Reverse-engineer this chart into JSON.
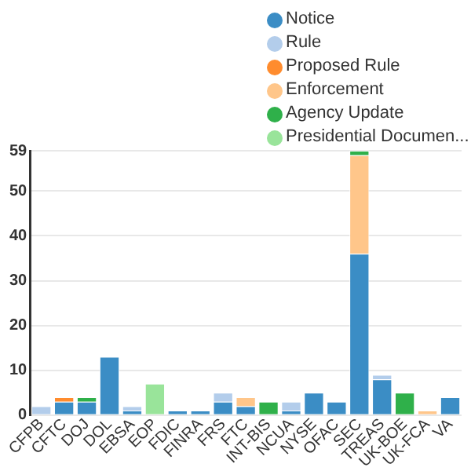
{
  "chart_data": {
    "type": "bar",
    "stacked": true,
    "legend": "top right",
    "grid": "y",
    "categories": [
      "CFPB",
      "CFTC",
      "DOJ",
      "DOL",
      "EBSA",
      "EOP",
      "FDIC",
      "FINRA",
      "FRS",
      "FTC",
      "INT-BIS",
      "NCUA",
      "NYSE",
      "OFAC",
      "SEC",
      "TREAS",
      "UK-BOE",
      "UK-FCA",
      "VA"
    ],
    "series": [
      {
        "name": "Notice",
        "color": "#3b8dc5",
        "values": [
          0,
          3,
          3,
          13,
          1,
          0,
          1,
          1,
          3,
          2,
          0,
          1,
          5,
          3,
          36,
          8,
          0,
          0,
          4
        ]
      },
      {
        "name": "Rule",
        "color": "#b3cdeb",
        "values": [
          2,
          0,
          0,
          0,
          1,
          0,
          0,
          0,
          2,
          0,
          0,
          2,
          0,
          0,
          0,
          1,
          0,
          0,
          0
        ]
      },
      {
        "name": "Proposed Rule",
        "color": "#ff8c2e",
        "values": [
          0,
          1,
          0,
          0,
          0,
          0,
          0,
          0,
          0,
          0,
          0,
          0,
          0,
          0,
          0,
          0,
          0,
          0,
          0
        ]
      },
      {
        "name": "Enforcement",
        "color": "#ffc68a",
        "values": [
          0,
          0,
          0,
          0,
          0,
          0,
          0,
          0,
          0,
          2,
          0,
          0,
          0,
          0,
          22,
          0,
          0,
          1,
          0
        ]
      },
      {
        "name": "Agency Update",
        "color": "#2fb04a",
        "values": [
          0,
          0,
          1,
          0,
          0,
          0,
          0,
          0,
          0,
          0,
          3,
          0,
          0,
          0,
          1,
          0,
          5,
          0,
          0
        ]
      },
      {
        "name": "Presidential Documen...",
        "color": "#99e49a",
        "values": [
          0,
          0,
          0,
          0,
          0,
          7,
          0,
          0,
          0,
          0,
          0,
          0,
          0,
          0,
          0,
          0,
          0,
          0,
          0
        ]
      }
    ],
    "ylim": [
      0,
      59
    ],
    "yticks": [
      0,
      10,
      20,
      30,
      40,
      50,
      59
    ]
  }
}
